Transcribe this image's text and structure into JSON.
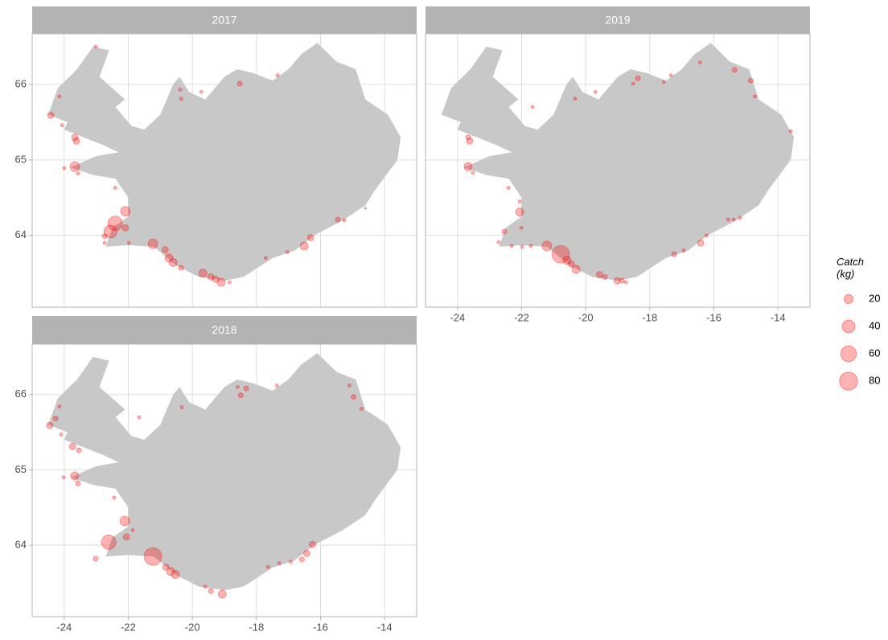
{
  "chart_data": [
    {
      "type": "scatter",
      "title": "2017",
      "color": "#ff0000",
      "x": [
        -23.02,
        -24.15,
        -24.42,
        -24.07,
        -23.67,
        -23.62,
        -23.67,
        -24.0,
        -23.57,
        -22.41,
        -22.09,
        -22.41,
        -22.56,
        -22.09,
        -22.74,
        -22.74,
        -21.98,
        -21.23,
        -20.85,
        -20.73,
        -20.6,
        -20.35,
        -19.67,
        -19.42,
        -19.27,
        -19.1,
        -18.84,
        -17.71,
        -17.04,
        -16.51,
        -16.31,
        -15.46,
        -15.26,
        -20.38,
        -20.35,
        -19.72,
        -18.52,
        -17.34,
        -14.6
      ],
      "y": [
        66.5,
        65.84,
        65.59,
        65.46,
        65.3,
        65.25,
        64.91,
        64.89,
        64.82,
        64.63,
        64.32,
        64.16,
        64.05,
        64.1,
        63.99,
        63.9,
        63.9,
        63.89,
        63.81,
        63.7,
        63.64,
        63.57,
        63.5,
        63.45,
        63.42,
        63.38,
        63.38,
        63.7,
        63.78,
        63.86,
        63.97,
        64.21,
        64.2,
        65.93,
        65.81,
        65.9,
        66.01,
        66.12,
        64.36
      ],
      "sizes": [
        2.5,
        2.5,
        10,
        2.5,
        10,
        10,
        23,
        2.5,
        2.5,
        2.5,
        23,
        52,
        41,
        10,
        6,
        2.5,
        2.5,
        23,
        10,
        16,
        16,
        6,
        16,
        10,
        10,
        16,
        2.5,
        2.5,
        2.5,
        16,
        10,
        6,
        2.5,
        2.5,
        2.5,
        2.5,
        6,
        2.5,
        1
      ],
      "xlim": [
        -25,
        -13
      ],
      "ylim": [
        63.05,
        66.67
      ],
      "xticks": [
        -24,
        -22,
        -20,
        -18,
        -16,
        -14
      ],
      "yticks": [
        64,
        65,
        66
      ]
    },
    {
      "type": "scatter",
      "title": "2018",
      "color": "#ff0000",
      "x": [
        -24.15,
        -24.27,
        -24.45,
        -24.1,
        -23.74,
        -23.54,
        -23.67,
        -24.02,
        -23.57,
        -22.44,
        -21.66,
        -22.11,
        -22.06,
        -21.86,
        -22.61,
        -23.02,
        -21.23,
        -20.83,
        -20.68,
        -20.53,
        -19.6,
        -19.42,
        -19.07,
        -17.64,
        -17.29,
        -16.93,
        -16.58,
        -16.43,
        -16.25,
        -20.33,
        -18.59,
        -18.49,
        -18.32,
        -17.36,
        -15.1,
        -14.97,
        -14.72
      ],
      "y": [
        65.84,
        65.68,
        65.59,
        65.47,
        65.31,
        65.26,
        64.92,
        64.9,
        64.82,
        64.63,
        65.7,
        64.32,
        64.11,
        64.2,
        64.04,
        63.82,
        63.85,
        63.71,
        63.65,
        63.61,
        63.45,
        63.39,
        63.35,
        63.71,
        63.76,
        63.78,
        63.81,
        63.89,
        64.01,
        65.83,
        66.1,
        65.99,
        66.08,
        66.12,
        66.12,
        65.97,
        65.81
      ],
      "sizes": [
        2.5,
        6,
        10,
        2.5,
        10,
        6,
        16,
        2.5,
        6,
        2.5,
        2.5,
        23,
        10,
        2.5,
        52,
        6,
        77,
        10,
        16,
        16,
        2.5,
        6,
        16,
        2.5,
        2.5,
        2.5,
        6,
        10,
        10,
        2.5,
        2.5,
        6,
        6,
        2.5,
        2.5,
        6,
        2.5
      ],
      "xlim": [
        -25,
        -13
      ],
      "ylim": [
        63.05,
        66.67
      ],
      "xticks": [
        -24,
        -22,
        -20,
        -18,
        -16,
        -14
      ],
      "yticks": [
        64,
        65,
        66
      ]
    },
    {
      "type": "scatter",
      "title": "2019",
      "color": "#ff0000",
      "x": [
        -23.67,
        -23.62,
        -23.67,
        -23.52,
        -22.41,
        -22.06,
        -22.06,
        -22.01,
        -22.54,
        -22.71,
        -22.31,
        -21.98,
        -21.71,
        -21.21,
        -20.78,
        -20.58,
        -20.45,
        -20.3,
        -19.57,
        -19.4,
        -19.02,
        -18.87,
        -18.74,
        -17.24,
        -16.94,
        -16.41,
        -16.23,
        -15.55,
        -15.38,
        -15.18,
        -14.72,
        -14.85,
        -15.35,
        -16.43,
        -17.34,
        -17.56,
        -18.37,
        -18.52,
        -19.7,
        -20.33,
        -21.66,
        -13.6
      ],
      "y": [
        65.3,
        65.25,
        64.91,
        64.83,
        64.63,
        64.45,
        64.31,
        64.1,
        64.05,
        63.91,
        63.86,
        63.85,
        63.86,
        63.86,
        63.75,
        63.67,
        63.62,
        63.55,
        63.48,
        63.45,
        63.4,
        63.4,
        63.38,
        63.75,
        63.8,
        63.9,
        64.0,
        64.21,
        64.21,
        64.23,
        65.84,
        66.05,
        66.19,
        66.29,
        66.12,
        66.03,
        66.08,
        66.01,
        65.9,
        65.81,
        65.7,
        65.38
      ],
      "sizes": [
        6,
        10,
        16,
        2.5,
        2.5,
        2.5,
        16,
        2.5,
        6,
        2.5,
        2.5,
        2.5,
        2.5,
        23,
        77,
        16,
        10,
        16,
        10,
        6,
        10,
        6,
        2.5,
        6,
        2.5,
        10,
        2.5,
        2.5,
        2.5,
        2.5,
        2.5,
        6,
        6,
        2.5,
        2.5,
        2.5,
        6,
        2.5,
        2.5,
        2.5,
        2.5,
        2.5
      ],
      "xlim": [
        -25,
        -13
      ],
      "ylim": [
        63.05,
        66.67
      ],
      "xticks": [
        -24,
        -22,
        -20,
        -18,
        -16,
        -14
      ],
      "yticks": [
        64,
        65,
        66
      ]
    }
  ],
  "size_legend": {
    "title": "Catch (kg)",
    "values": [
      20,
      40,
      60,
      80
    ]
  }
}
